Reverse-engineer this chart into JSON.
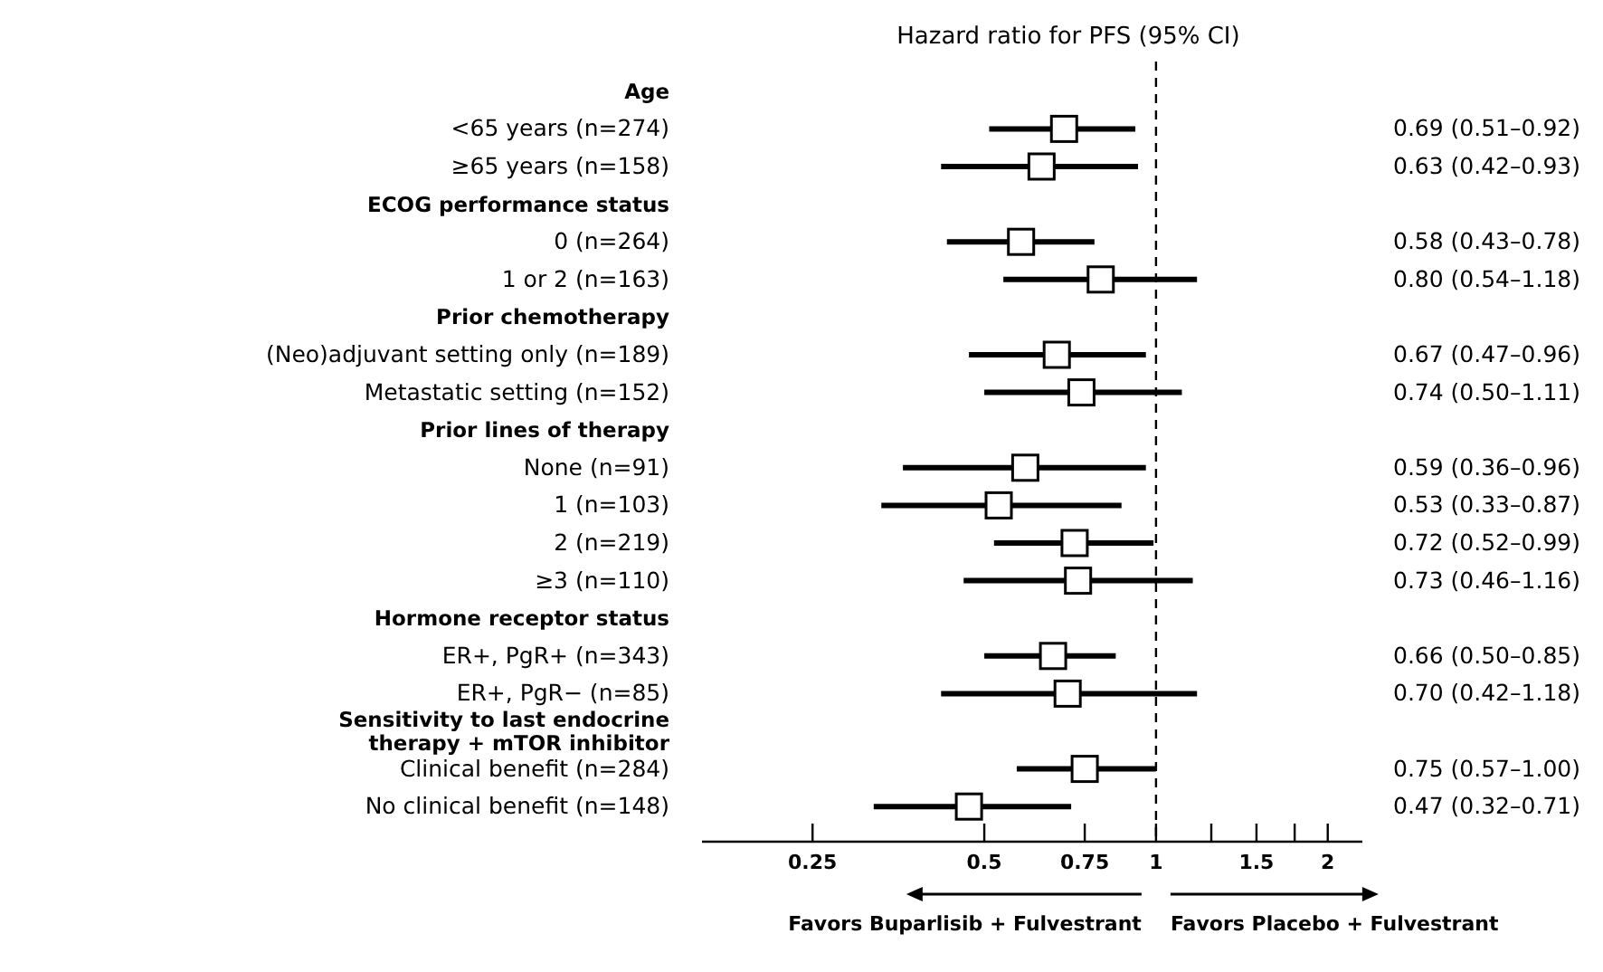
{
  "chart_data": {
    "type": "scatter",
    "orientation": "horizontal",
    "title": "Hazard ratio for PFS (95% CI)",
    "categories": [
      "Age",
      "<65 years (n=274)",
      "≥65 years (n=158)",
      "ECOG performance status",
      "0 (n=264)",
      "1 or 2 (n=163)",
      "Prior chemotherapy",
      "(Neo)adjuvant setting only (n=189)",
      "Metastatic setting (n=152)",
      "Prior lines of therapy",
      "None (n=91)",
      "1 (n=103)",
      "2 (n=219)",
      "≥3 (n=110)",
      "Hormone receptor status",
      "ER+, PgR+ (n=343)",
      "ER+, PgR− (n=85)",
      "Sensitivity to last endocrine therapy + mTOR inhibitor",
      "Clinical benefit (n=284)",
      "No clinical benefit (n=148)"
    ],
    "values": [
      null,
      0.69,
      0.63,
      null,
      0.58,
      0.8,
      null,
      0.67,
      0.74,
      null,
      0.59,
      0.53,
      0.72,
      0.73,
      null,
      0.66,
      0.7,
      null,
      0.75,
      0.47
    ],
    "errors": [
      null,
      [
        0.51,
        0.92
      ],
      [
        0.42,
        0.93
      ],
      null,
      [
        0.43,
        0.78
      ],
      [
        0.54,
        1.18
      ],
      null,
      [
        0.47,
        0.96
      ],
      [
        0.5,
        1.11
      ],
      null,
      [
        0.36,
        0.96
      ],
      [
        0.33,
        0.87
      ],
      [
        0.52,
        0.99
      ],
      [
        0.46,
        1.16
      ],
      null,
      [
        0.5,
        0.85
      ],
      [
        0.42,
        1.18
      ],
      null,
      [
        0.57,
        1.0
      ],
      [
        0.32,
        0.71
      ]
    ],
    "value_labels": [
      null,
      "0.69 (0.51–0.92)",
      "0.63 (0.42–0.93)",
      null,
      "0.58 (0.43–0.78)",
      "0.80 (0.54–1.18)",
      null,
      "0.67 (0.47–0.96)",
      "0.74 (0.50–1.11)",
      null,
      "0.59 (0.36–0.96)",
      "0.53 (0.33–0.87)",
      "0.72 (0.52–0.99)",
      "0.73 (0.46–1.16)",
      null,
      "0.66 (0.50–0.85)",
      "0.70 (0.42–1.18)",
      null,
      "0.75 (0.57–1.00)",
      "0.47 (0.32–0.71)"
    ],
    "color": "#000000",
    "marker": "square",
    "log": "x",
    "xlim": [
      0.16,
      2.3
    ],
    "xticks": [
      0.25,
      0.5,
      0.75,
      1,
      {
        "value": 1.25,
        "label": null
      },
      1.5,
      {
        "value": 1.75,
        "label": null
      },
      2
    ],
    "ref_lines": [
      {
        "axis": "x",
        "value": 1,
        "line_style": "dashed",
        "color": "#000000"
      }
    ],
    "annotations": [
      "Favors Buparlisib + Fulvestrant",
      "Favors Placebo + Fulvestrant"
    ]
  }
}
